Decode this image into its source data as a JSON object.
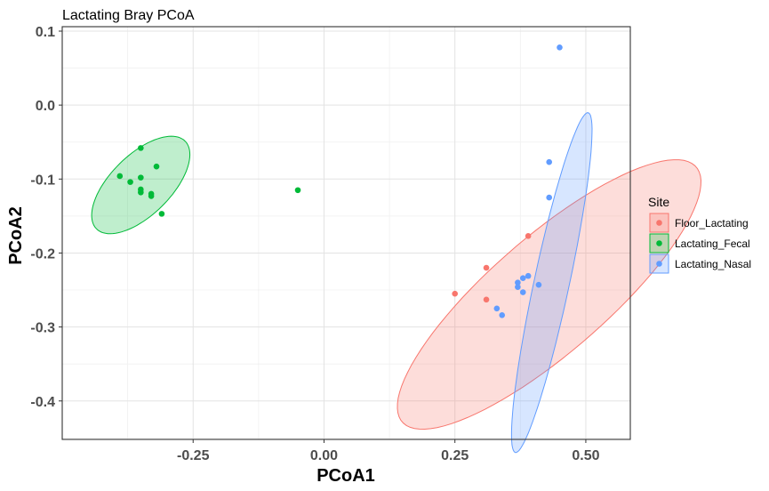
{
  "chart_data": {
    "type": "scatter",
    "title": "Lactating Bray PCoA",
    "xlabel": "PCoA1",
    "ylabel": "PCoA2",
    "xlim": [
      -0.5,
      0.585
    ],
    "ylim": [
      -0.452,
      0.106
    ],
    "x_ticks": [
      -0.25,
      0.0,
      0.25,
      0.5
    ],
    "x_tick_labels": [
      "-0.25",
      "0.00",
      "0.25",
      "0.50"
    ],
    "y_ticks": [
      0.1,
      0.0,
      -0.1,
      -0.2,
      -0.3,
      -0.4
    ],
    "y_tick_labels": [
      "0.1",
      "0.0",
      "-0.1",
      "-0.2",
      "-0.3",
      "-0.4"
    ],
    "grid": true,
    "legend": {
      "title": "Site",
      "position": "right"
    },
    "series": [
      {
        "name": "Floor_Lactating",
        "color": "#F8766D",
        "points": [
          {
            "x": 0.25,
            "y": -0.255
          },
          {
            "x": 0.31,
            "y": -0.22
          },
          {
            "x": 0.31,
            "y": -0.263
          },
          {
            "x": 0.39,
            "y": -0.177
          }
        ],
        "ellipse": {
          "cx": 0.43,
          "cy": -0.256,
          "rx": 0.331,
          "ry": 0.088,
          "angle_deg": 30.0
        }
      },
      {
        "name": "Lactating_Fecal",
        "color": "#00BA38",
        "points": [
          {
            "x": -0.35,
            "y": -0.058
          },
          {
            "x": -0.32,
            "y": -0.083
          },
          {
            "x": -0.39,
            "y": -0.096
          },
          {
            "x": -0.37,
            "y": -0.104
          },
          {
            "x": -0.35,
            "y": -0.098
          },
          {
            "x": -0.35,
            "y": -0.114
          },
          {
            "x": -0.35,
            "y": -0.118
          },
          {
            "x": -0.33,
            "y": -0.12
          },
          {
            "x": -0.33,
            "y": -0.123
          },
          {
            "x": -0.31,
            "y": -0.147
          },
          {
            "x": -0.05,
            "y": -0.115
          }
        ],
        "ellipse": {
          "cx": -0.35,
          "cy": -0.108,
          "rx": 0.105,
          "ry": 0.046,
          "angle_deg": 30.0
        }
      },
      {
        "name": "Lactating_Nasal",
        "color": "#619CFF",
        "points": [
          {
            "x": 0.45,
            "y": 0.078
          },
          {
            "x": 0.43,
            "y": -0.077
          },
          {
            "x": 0.43,
            "y": -0.125
          },
          {
            "x": 0.37,
            "y": -0.24
          },
          {
            "x": 0.38,
            "y": -0.234
          },
          {
            "x": 0.39,
            "y": -0.231
          },
          {
            "x": 0.37,
            "y": -0.246
          },
          {
            "x": 0.38,
            "y": -0.253
          },
          {
            "x": 0.41,
            "y": -0.243
          },
          {
            "x": 0.33,
            "y": -0.275
          },
          {
            "x": 0.34,
            "y": -0.284
          }
        ],
        "ellipse": {
          "cx": 0.435,
          "cy": -0.24,
          "rx": 0.24,
          "ry": 0.033,
          "angle_deg": 73.0
        }
      }
    ]
  }
}
